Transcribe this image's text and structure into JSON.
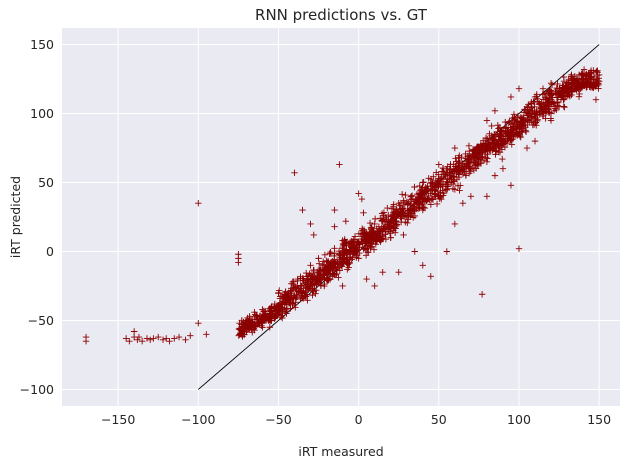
{
  "chart_data": {
    "type": "scatter",
    "title": "RNN predictions vs. GT",
    "xlabel": "iRT measured",
    "ylabel": "iRT predicted",
    "xlim": [
      -185,
      163
    ],
    "ylim": [
      -112,
      162
    ],
    "xticks": [
      -150,
      -100,
      -50,
      0,
      50,
      100,
      150
    ],
    "yticks": [
      -100,
      -50,
      0,
      50,
      100,
      150
    ],
    "grid": true,
    "background": "#eaeaf2",
    "marker": "+",
    "marker_color": "#8b0000",
    "reference_line": {
      "x": [
        -100,
        150
      ],
      "y": [
        -100,
        150
      ],
      "color": "#000000"
    },
    "points": [
      [
        -170,
        -62
      ],
      [
        -170,
        -65
      ],
      [
        -145,
        -63
      ],
      [
        -143,
        -65
      ],
      [
        -140,
        -58
      ],
      [
        -140,
        -62
      ],
      [
        -138,
        -64
      ],
      [
        -137,
        -62
      ],
      [
        -135,
        -65
      ],
      [
        -132,
        -63
      ],
      [
        -130,
        -64
      ],
      [
        -128,
        -63
      ],
      [
        -125,
        -62
      ],
      [
        -122,
        -64
      ],
      [
        -120,
        -63
      ],
      [
        -118,
        -65
      ],
      [
        -115,
        -63
      ],
      [
        -112,
        -62
      ],
      [
        -108,
        -64
      ],
      [
        -105,
        -61
      ],
      [
        -100,
        35
      ],
      [
        -100,
        -52
      ],
      [
        -95,
        -60
      ],
      [
        -75,
        -2
      ],
      [
        -75,
        -5
      ],
      [
        -75,
        -8
      ],
      [
        -70,
        -50
      ],
      [
        -68,
        -47
      ],
      [
        -65,
        -44
      ],
      [
        -60,
        -42
      ],
      [
        -40,
        57
      ],
      [
        -38,
        -20
      ],
      [
        -35,
        30
      ],
      [
        -30,
        20
      ],
      [
        -28,
        12
      ],
      [
        -25,
        -5
      ],
      [
        -20,
        -12
      ],
      [
        -15,
        18
      ],
      [
        -15,
        30
      ],
      [
        -12,
        63
      ],
      [
        -10,
        -25
      ],
      [
        -8,
        22
      ],
      [
        0,
        42
      ],
      [
        2,
        38
      ],
      [
        3,
        28
      ],
      [
        5,
        -20
      ],
      [
        10,
        -25
      ],
      [
        15,
        -15
      ],
      [
        20,
        10
      ],
      [
        25,
        -15
      ],
      [
        28,
        12
      ],
      [
        35,
        0
      ],
      [
        38,
        35
      ],
      [
        40,
        -10
      ],
      [
        45,
        -18
      ],
      [
        55,
        0
      ],
      [
        60,
        20
      ],
      [
        65,
        35
      ],
      [
        70,
        40
      ],
      [
        77,
        -31
      ],
      [
        80,
        40
      ],
      [
        85,
        55
      ],
      [
        90,
        60
      ],
      [
        95,
        48
      ],
      [
        100,
        2
      ],
      [
        105,
        75
      ],
      [
        110,
        80
      ],
      [
        115,
        100
      ],
      [
        120,
        95
      ],
      [
        125,
        105
      ],
      [
        130,
        115
      ],
      [
        140,
        125
      ],
      [
        145,
        130
      ],
      [
        148,
        110
      ],
      [
        150,
        128
      ],
      [
        110,
        112
      ],
      [
        115,
        118
      ],
      [
        120,
        122
      ],
      [
        95,
        112
      ],
      [
        100,
        118
      ],
      [
        80,
        95
      ],
      [
        85,
        102
      ],
      [
        60,
        75
      ],
      [
        50,
        63
      ],
      [
        40,
        50
      ],
      [
        25,
        35
      ],
      [
        10,
        20
      ],
      [
        -10,
        8
      ],
      [
        -30,
        -10
      ],
      [
        -50,
        -30
      ],
      [
        -60,
        -55
      ],
      [
        -72,
        -60
      ],
      [
        -65,
        -57
      ],
      [
        -55,
        -50
      ],
      [
        -45,
        -45
      ],
      [
        -35,
        -30
      ],
      [
        -20,
        -20
      ],
      [
        0,
        -5
      ],
      [
        20,
        10
      ],
      [
        40,
        30
      ],
      [
        60,
        45
      ],
      [
        80,
        65
      ],
      [
        100,
        85
      ],
      [
        120,
        100
      ],
      [
        135,
        118
      ],
      [
        145,
        120
      ]
    ]
  }
}
